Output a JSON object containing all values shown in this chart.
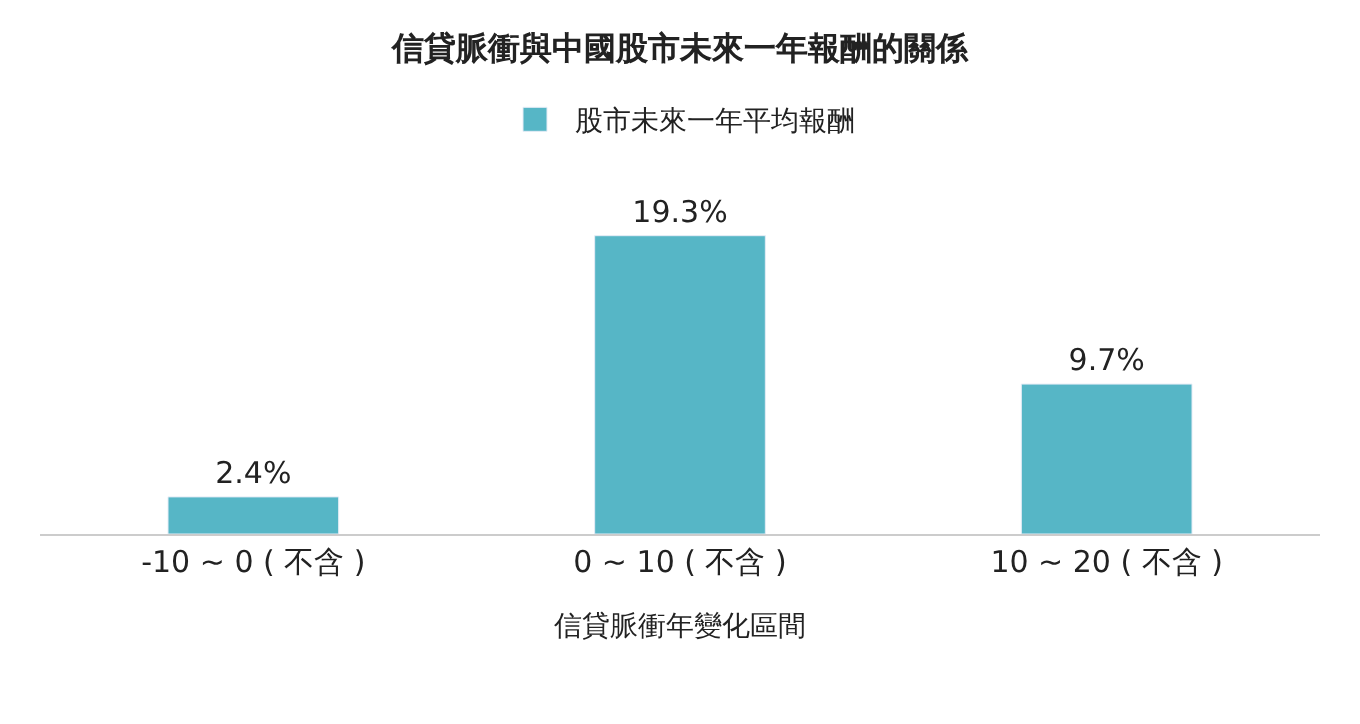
{
  "chart_data": {
    "type": "bar",
    "title": "信貸脈衝與中國股市未來一年報酬的關係",
    "xlabel": "信貸脈衝年變化區間",
    "categories": [
      "-10 ~ 0 ( 不含 )",
      "0 ~ 10 ( 不含 )",
      "10 ~ 20 ( 不含 )"
    ],
    "series": [
      {
        "name": "股市未來一年平均報酬",
        "color": "#56b6c6",
        "values": [
          2.4,
          19.3,
          9.7
        ],
        "value_labels": [
          "2.4%",
          "19.3%",
          "9.7%"
        ]
      }
    ],
    "legend": "top"
  }
}
